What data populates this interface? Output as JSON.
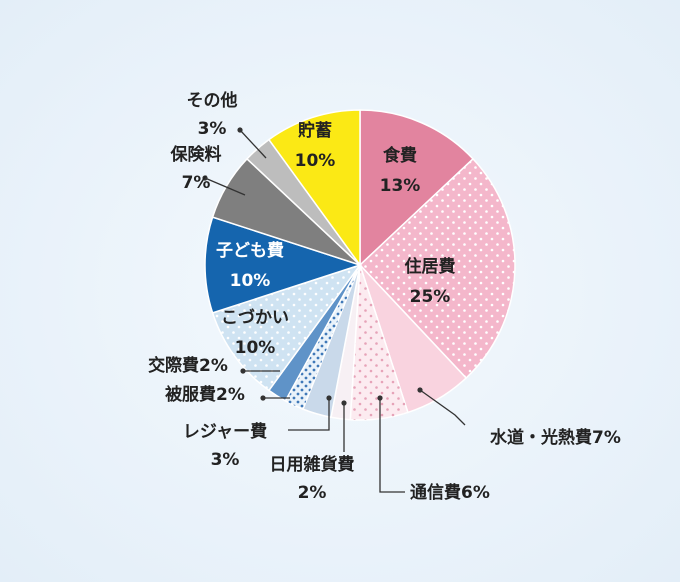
{
  "chart_data": {
    "type": "pie",
    "start_angle_deg": 0,
    "direction": "clockwise",
    "slices": [
      {
        "label": "食費",
        "value": 13,
        "value_text": "13%",
        "color": "#e2849f",
        "pattern": "none",
        "label_position": "inside",
        "text_color": "#222222"
      },
      {
        "label": "住居費",
        "value": 25,
        "value_text": "25%",
        "color": "#f4b7cb",
        "pattern": "dots-white",
        "label_position": "inside",
        "text_color": "#222222"
      },
      {
        "label": "水道・光熱費7%",
        "value": 7,
        "value_text": "",
        "color": "#f9d3df",
        "pattern": "none",
        "label_position": "outside",
        "text_color": "#222222"
      },
      {
        "label": "通信費6%",
        "value": 6,
        "value_text": "",
        "color": "#fcebf0",
        "pattern": "dots-pink",
        "label_position": "outside",
        "text_color": "#222222"
      },
      {
        "label": "日用雑貨費",
        "value": 2,
        "value_text": "2%",
        "color": "#f7f0f4",
        "pattern": "none",
        "label_position": "outside",
        "text_color": "#222222"
      },
      {
        "label": "レジャー費",
        "value": 3,
        "value_text": "3%",
        "color": "#c9d9ea",
        "pattern": "none",
        "label_position": "outside",
        "text_color": "#222222"
      },
      {
        "label": "被服費2%",
        "value": 2,
        "value_text": "",
        "color": "#e9f2fa",
        "pattern": "dots-blue",
        "label_position": "outside",
        "text_color": "#222222"
      },
      {
        "label": "交際費2%",
        "value": 2,
        "value_text": "",
        "color": "#5f93c8",
        "pattern": "none",
        "label_position": "outside",
        "text_color": "#222222"
      },
      {
        "label": "こづかい",
        "value": 10,
        "value_text": "10%",
        "color": "#cfe3f2",
        "pattern": "dots-white",
        "label_position": "inside",
        "text_color": "#222222"
      },
      {
        "label": "子ども費",
        "value": 10,
        "value_text": "10%",
        "color": "#1565ae",
        "pattern": "none",
        "label_position": "inside",
        "text_color": "#ffffff"
      },
      {
        "label": "保険料",
        "value": 7,
        "value_text": "7%",
        "color": "#7f7f7f",
        "pattern": "none",
        "label_position": "outside",
        "text_color": "#222222"
      },
      {
        "label": "その他",
        "value": 3,
        "value_text": "3%",
        "color": "#bdbdbd",
        "pattern": "none",
        "label_position": "outside",
        "text_color": "#222222"
      },
      {
        "label": "貯蓄",
        "value": 10,
        "value_text": "10%",
        "color": "#fbe915",
        "pattern": "none",
        "label_position": "inside",
        "text_color": "#222222"
      }
    ]
  }
}
